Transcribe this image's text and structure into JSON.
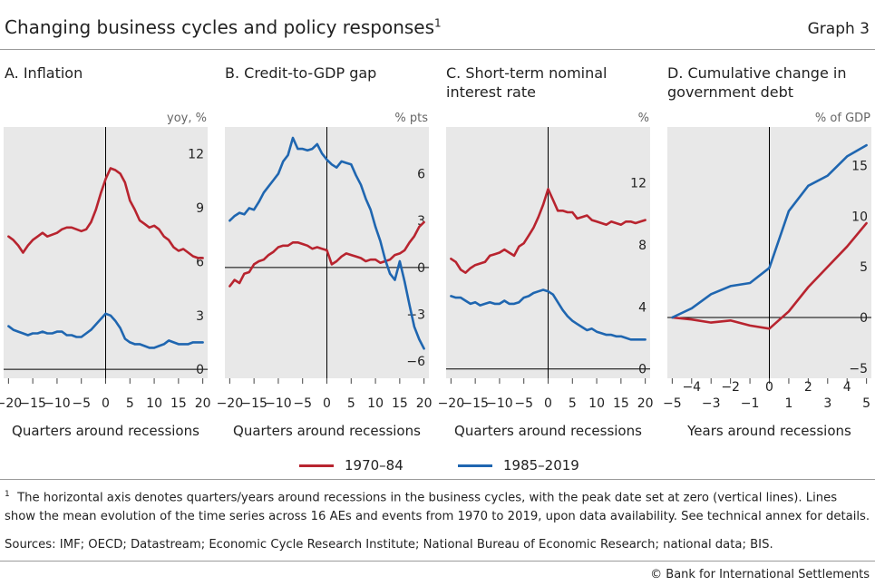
{
  "header": {
    "title": "Changing business cycles and policy responses",
    "title_sup": "1",
    "graph_no": "Graph 3"
  },
  "legend": {
    "items": [
      {
        "label": "1970–84",
        "color": "#b8242f"
      },
      {
        "label": "1985–2019",
        "color": "#1f66b0"
      }
    ]
  },
  "footnote": {
    "marker": "1",
    "text": "The horizontal axis denotes quarters/years around recessions in the business cycles, with the peak date set at zero (vertical lines). Lines show the mean evolution of the time series across 16 AEs and events from 1970 to 2019, upon data availability. See technical annex for details."
  },
  "sources": "Sources: IMF; OECD; Datastream; Economic Cycle Research Institute; National Bureau of Economic Research; national data; BIS.",
  "copyright": "© Bank for International Settlements",
  "colors": {
    "red": "#b8242f",
    "blue": "#1f66b0",
    "panel_bg": "#e8e8e8"
  },
  "chart_data": [
    {
      "type": "line",
      "panel": "A",
      "title": "A. Inflation",
      "unit": "yoy, %",
      "xlabel": "Quarters around recessions",
      "xlim": [
        -21,
        21
      ],
      "ylim": [
        -0.5,
        13.5
      ],
      "xticks": [
        -20,
        -15,
        -10,
        -5,
        0,
        5,
        10,
        15,
        20
      ],
      "yticks": [
        0,
        3,
        6,
        9,
        12
      ],
      "series": [
        {
          "name": "1970–84",
          "x": [
            -20,
            -19,
            -18,
            -17,
            -16,
            -15,
            -14,
            -13,
            -12,
            -11,
            -10,
            -9,
            -8,
            -7,
            -6,
            -5,
            -4,
            -3,
            -2,
            -1,
            0,
            1,
            2,
            3,
            4,
            5,
            6,
            7,
            8,
            9,
            10,
            11,
            12,
            13,
            14,
            15,
            16,
            17,
            18,
            19,
            20
          ],
          "y": [
            7.4,
            7.2,
            6.9,
            6.5,
            6.9,
            7.2,
            7.4,
            7.6,
            7.4,
            7.5,
            7.6,
            7.8,
            7.9,
            7.9,
            7.8,
            7.7,
            7.8,
            8.2,
            8.9,
            9.8,
            10.6,
            11.2,
            11.1,
            10.9,
            10.4,
            9.4,
            8.9,
            8.3,
            8.1,
            7.9,
            8.0,
            7.8,
            7.4,
            7.2,
            6.8,
            6.6,
            6.7,
            6.5,
            6.3,
            6.2,
            6.2
          ]
        },
        {
          "name": "1985–2019",
          "x": [
            -20,
            -19,
            -18,
            -17,
            -16,
            -15,
            -14,
            -13,
            -12,
            -11,
            -10,
            -9,
            -8,
            -7,
            -6,
            -5,
            -4,
            -3,
            -2,
            -1,
            0,
            1,
            2,
            3,
            4,
            5,
            6,
            7,
            8,
            9,
            10,
            11,
            12,
            13,
            14,
            15,
            16,
            17,
            18,
            19,
            20
          ],
          "y": [
            2.4,
            2.2,
            2.1,
            2.0,
            1.9,
            2.0,
            2.0,
            2.1,
            2.0,
            2.0,
            2.1,
            2.1,
            1.9,
            1.9,
            1.8,
            1.8,
            2.0,
            2.2,
            2.5,
            2.8,
            3.1,
            3.0,
            2.7,
            2.3,
            1.7,
            1.5,
            1.4,
            1.4,
            1.3,
            1.2,
            1.2,
            1.3,
            1.4,
            1.6,
            1.5,
            1.4,
            1.4,
            1.4,
            1.5,
            1.5,
            1.5
          ]
        }
      ]
    },
    {
      "type": "line",
      "panel": "B",
      "title": "B. Credit-to-GDP gap",
      "unit": "% pts",
      "xlabel": "Quarters around recessions",
      "xlim": [
        -21,
        21
      ],
      "ylim": [
        -7.1,
        9.0
      ],
      "xticks": [
        -20,
        -15,
        -10,
        -5,
        0,
        5,
        10,
        15,
        20
      ],
      "yticks": [
        -6,
        -3,
        0,
        3,
        6
      ],
      "series": [
        {
          "name": "1970–84",
          "x": [
            -20,
            -19,
            -18,
            -17,
            -16,
            -15,
            -14,
            -13,
            -12,
            -11,
            -10,
            -9,
            -8,
            -7,
            -6,
            -5,
            -4,
            -3,
            -2,
            -1,
            0,
            1,
            2,
            3,
            4,
            5,
            6,
            7,
            8,
            9,
            10,
            11,
            12,
            13,
            14,
            15,
            16,
            17,
            18,
            19,
            20
          ],
          "y": [
            -1.2,
            -0.8,
            -1.0,
            -0.4,
            -0.3,
            0.2,
            0.4,
            0.5,
            0.8,
            1.0,
            1.3,
            1.4,
            1.4,
            1.6,
            1.6,
            1.5,
            1.4,
            1.2,
            1.3,
            1.2,
            1.1,
            0.2,
            0.4,
            0.7,
            0.9,
            0.8,
            0.7,
            0.6,
            0.4,
            0.5,
            0.5,
            0.3,
            0.4,
            0.5,
            0.8,
            0.9,
            1.1,
            1.6,
            2.0,
            2.6,
            2.9
          ]
        },
        {
          "name": "1985–2019",
          "x": [
            -20,
            -19,
            -18,
            -17,
            -16,
            -15,
            -14,
            -13,
            -12,
            -11,
            -10,
            -9,
            -8,
            -7,
            -6,
            -5,
            -4,
            -3,
            -2,
            -1,
            0,
            1,
            2,
            3,
            4,
            5,
            6,
            7,
            8,
            9,
            10,
            11,
            12,
            13,
            14,
            15,
            16,
            17,
            18,
            19,
            20
          ],
          "y": [
            3.0,
            3.3,
            3.5,
            3.4,
            3.8,
            3.7,
            4.2,
            4.8,
            5.2,
            5.6,
            6.0,
            6.8,
            7.2,
            8.3,
            7.6,
            7.6,
            7.5,
            7.6,
            7.9,
            7.3,
            6.9,
            6.6,
            6.4,
            6.8,
            6.7,
            6.6,
            5.9,
            5.3,
            4.4,
            3.7,
            2.6,
            1.7,
            0.5,
            -0.4,
            -0.8,
            0.4,
            -0.9,
            -2.4,
            -3.8,
            -4.6,
            -5.2
          ]
        }
      ]
    },
    {
      "type": "line",
      "panel": "C",
      "title": "C. Short-term nominal interest rate",
      "unit": "%",
      "xlabel": "Quarters around recessions",
      "xlim": [
        -21,
        21
      ],
      "ylim": [
        -0.6,
        15.6
      ],
      "xticks": [
        -20,
        -15,
        -10,
        -5,
        0,
        5,
        10,
        15,
        20
      ],
      "yticks": [
        0,
        4,
        8,
        12
      ],
      "series": [
        {
          "name": "1970–84",
          "x": [
            -20,
            -19,
            -18,
            -17,
            -16,
            -15,
            -14,
            -13,
            -12,
            -11,
            -10,
            -9,
            -8,
            -7,
            -6,
            -5,
            -4,
            -3,
            -2,
            -1,
            0,
            1,
            2,
            3,
            4,
            5,
            6,
            7,
            8,
            9,
            10,
            11,
            12,
            13,
            14,
            15,
            16,
            17,
            18,
            19,
            20
          ],
          "y": [
            7.1,
            6.9,
            6.4,
            6.2,
            6.5,
            6.7,
            6.8,
            6.9,
            7.3,
            7.4,
            7.5,
            7.7,
            7.5,
            7.3,
            7.9,
            8.1,
            8.6,
            9.1,
            9.8,
            10.6,
            11.6,
            10.9,
            10.2,
            10.2,
            10.1,
            10.1,
            9.7,
            9.8,
            9.9,
            9.6,
            9.5,
            9.4,
            9.3,
            9.5,
            9.4,
            9.3,
            9.5,
            9.5,
            9.4,
            9.5,
            9.6
          ]
        },
        {
          "name": "1985–2019",
          "x": [
            -20,
            -19,
            -18,
            -17,
            -16,
            -15,
            -14,
            -13,
            -12,
            -11,
            -10,
            -9,
            -8,
            -7,
            -6,
            -5,
            -4,
            -3,
            -2,
            -1,
            0,
            1,
            2,
            3,
            4,
            5,
            6,
            7,
            8,
            9,
            10,
            11,
            12,
            13,
            14,
            15,
            16,
            17,
            18,
            19,
            20
          ],
          "y": [
            4.7,
            4.6,
            4.6,
            4.4,
            4.2,
            4.3,
            4.1,
            4.2,
            4.3,
            4.2,
            4.2,
            4.4,
            4.2,
            4.2,
            4.3,
            4.6,
            4.7,
            4.9,
            5.0,
            5.1,
            5.0,
            4.8,
            4.3,
            3.8,
            3.4,
            3.1,
            2.9,
            2.7,
            2.5,
            2.6,
            2.4,
            2.3,
            2.2,
            2.2,
            2.1,
            2.1,
            2.0,
            1.9,
            1.9,
            1.9,
            1.9
          ]
        }
      ]
    },
    {
      "type": "line",
      "panel": "D",
      "title": "D. Cumulative change in government debt",
      "unit": "% of GDP",
      "xlabel": "Years around recessions",
      "xlim": [
        -5.25,
        5.25
      ],
      "ylim": [
        -6.0,
        18.8
      ],
      "xticks": [
        -5,
        -4,
        -3,
        -2,
        -1,
        0,
        1,
        2,
        3,
        4,
        5
      ],
      "yticks": [
        -5,
        0,
        5,
        10,
        15
      ],
      "series": [
        {
          "name": "1970–84",
          "x": [
            -5,
            -4,
            -3,
            -2,
            -1,
            0,
            1,
            2,
            3,
            4,
            5
          ],
          "y": [
            0.0,
            -0.2,
            -0.5,
            -0.3,
            -0.8,
            -1.1,
            0.6,
            3.0,
            5.0,
            7.0,
            9.3
          ]
        },
        {
          "name": "1985–2019",
          "x": [
            -5,
            -4,
            -3,
            -2,
            -1,
            0,
            1,
            2,
            3,
            4,
            5
          ],
          "y": [
            0.0,
            0.9,
            2.3,
            3.1,
            3.4,
            4.9,
            10.5,
            13.0,
            14.0,
            15.9,
            17.0
          ]
        }
      ]
    }
  ]
}
